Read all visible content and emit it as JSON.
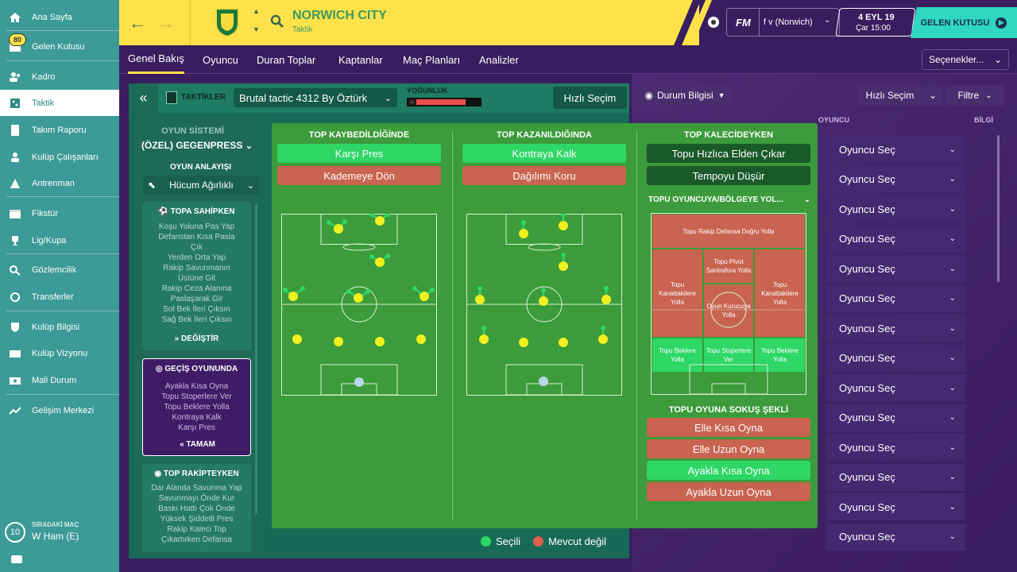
{
  "sidebar": {
    "items": [
      {
        "label": "Ana Sayfa",
        "icon": "home-icon"
      },
      {
        "label": "Gelen Kutusu",
        "icon": "inbox-icon"
      },
      {
        "label": "Kadro",
        "icon": "squad-icon"
      },
      {
        "label": "Taktik",
        "icon": "tactics-icon"
      },
      {
        "label": "Takım Raporu",
        "icon": "report-icon"
      },
      {
        "label": "Kulüp Çalışanları",
        "icon": "staff-icon"
      },
      {
        "label": "Antrenman",
        "icon": "training-icon"
      },
      {
        "label": "Fikstür",
        "icon": "calendar-icon"
      },
      {
        "label": "Lig/Kupa",
        "icon": "trophy-icon"
      },
      {
        "label": "Gözlemcilik",
        "icon": "scout-icon"
      },
      {
        "label": "Transferler",
        "icon": "transfer-icon"
      },
      {
        "label": "Kulüp Bilgisi",
        "icon": "shield-icon"
      },
      {
        "label": "Kulüp Vizyonu",
        "icon": "vision-icon"
      },
      {
        "label": "Mali Durum",
        "icon": "finance-icon"
      },
      {
        "label": "Gelişim Merkezi",
        "icon": "development-icon"
      }
    ],
    "inbox_badge": "80",
    "next_match_label": "SIRADAKİ MAÇ",
    "next_match_value": "W Ham (E)",
    "next_match_days": "10"
  },
  "header": {
    "club_name": "NORWICH CITY",
    "subtitle": "Taktik",
    "fm_label": "FM",
    "profile": "f v (Norwich)",
    "date": "4 EYL 19",
    "day_time": "Çar 15:00",
    "inbox_button": "GELEN KUTUSU"
  },
  "menu": {
    "tabs": [
      "Genel Bakış",
      "Oyuncu",
      "Duran Toplar",
      "Kaptanlar",
      "Maç Planları",
      "Analizler"
    ],
    "options": "Seçenekler..."
  },
  "tactic_bar": {
    "label": "TAKTİKLER",
    "tactic_name": "Brutal tactic 4312 By Öztürk",
    "intensity_label": "YOĞUNLUK",
    "intensity_level": 0.78,
    "quick_pick": "Hızlı Seçim"
  },
  "left_column": {
    "system_label": "OYUN SİSTEMİ",
    "system_value": "(ÖZEL) GEGENPRESS",
    "mentality_label": "OYUN ANLAYIŞI",
    "mentality_value": "Hücum Ağırlıklı",
    "in_possession": {
      "title": "TOPA SAHİPKEN",
      "lines": [
        "Koşu Yoluna Pas Yap",
        "Defanstan Kısa Pasla",
        "Çık",
        "Yerden Orta Yap",
        "Rakip Savunmanın",
        "Üstüne Git",
        "Rakip Ceza Alanına",
        "Paslaşarak Gir",
        "Sol Bek İleri Çıksın",
        "Sağ Bek İleri Çıksın"
      ],
      "button": "DEĞİŞTİR"
    },
    "transition": {
      "title": "GEÇİŞ OYUNUNDA",
      "lines": [
        "Ayakla Kısa Oyna",
        "Topu Stoperlere Ver",
        "Topu Beklere Yolla",
        "Kontraya Kalk",
        "Karşı Pres"
      ],
      "button": "TAMAM"
    },
    "out_of_possession": {
      "title": "TOP RAKİPTEYKEN",
      "lines": [
        "Dar Alanda Savunma Yap",
        "Savunmayı Önde Kur",
        "Baskı Hattı Çok Önde",
        "Yüksek Şiddetli Pres",
        "Rakip Kaleci Top",
        "Çıkartırken Defansa",
        "Baskı"
      ]
    }
  },
  "board": {
    "col1": {
      "title": "TOP KAYBEDİLDİĞİNDE",
      "opt1": "Karşı Pres",
      "opt2": "Kademeye Dön"
    },
    "col2": {
      "title": "TOP KAZANILDIĞINDA",
      "opt1": "Kontraya Kalk",
      "opt2": "Dağılımı Koru"
    },
    "col3": {
      "title": "TOP KALECİDEYKEN",
      "opt1": "Topu Hızlıca Elden Çıkar",
      "opt2": "Tempoyu Düşür",
      "dist_title": "TOPU OYUNCUYA/BÖLGEYE YOL...",
      "zones": {
        "top": "Topu Rakip Defansa Doğru Yolla",
        "left_wide": "Topu Kanattakilere Yolla",
        "pivot": "Topu Pivot Santrafora Yolla",
        "right_wide": "Topu Kanattakilere Yolla",
        "playmaker": "Oyun Kurucuya Yolla",
        "fullback_l": "Topu Beklere Yolla",
        "cb": "Topu Stoperlere Ver",
        "fullback_r": "Topu Beklere Yolla"
      },
      "release_title": "TOPU OYUNA SOKUŞ ŞEKLİ",
      "release": [
        "Elle Kısa Oyna",
        "Elle Uzun Oyna",
        "Ayakla Kısa Oyna",
        "Ayakla Uzun Oyna"
      ]
    },
    "legend": {
      "selected": "Seçili",
      "unavailable": "Mevcut değil"
    }
  },
  "right_panel": {
    "info_button": "Durum Bilgisi",
    "quick_pick": "Hızlı Seçim",
    "filter": "Filtre",
    "col_player": "OYUNCU",
    "col_info": "BİLGİ",
    "rows": [
      "Oyuncu Seç",
      "Oyuncu Seç",
      "Oyuncu Seç",
      "Oyuncu Seç",
      "Oyuncu Seç",
      "Oyuncu Seç",
      "Oyuncu Seç",
      "Oyuncu Seç",
      "Oyuncu Seç",
      "Oyuncu Seç",
      "Oyuncu Seç",
      "Oyuncu Seç",
      "Oyuncu Seç",
      "Oyuncu Seç"
    ]
  },
  "colors": {
    "accent": "#ffe24a",
    "selected": "#2ed766",
    "unavailable": "#c86450",
    "sidebar": "#3c9a97"
  }
}
